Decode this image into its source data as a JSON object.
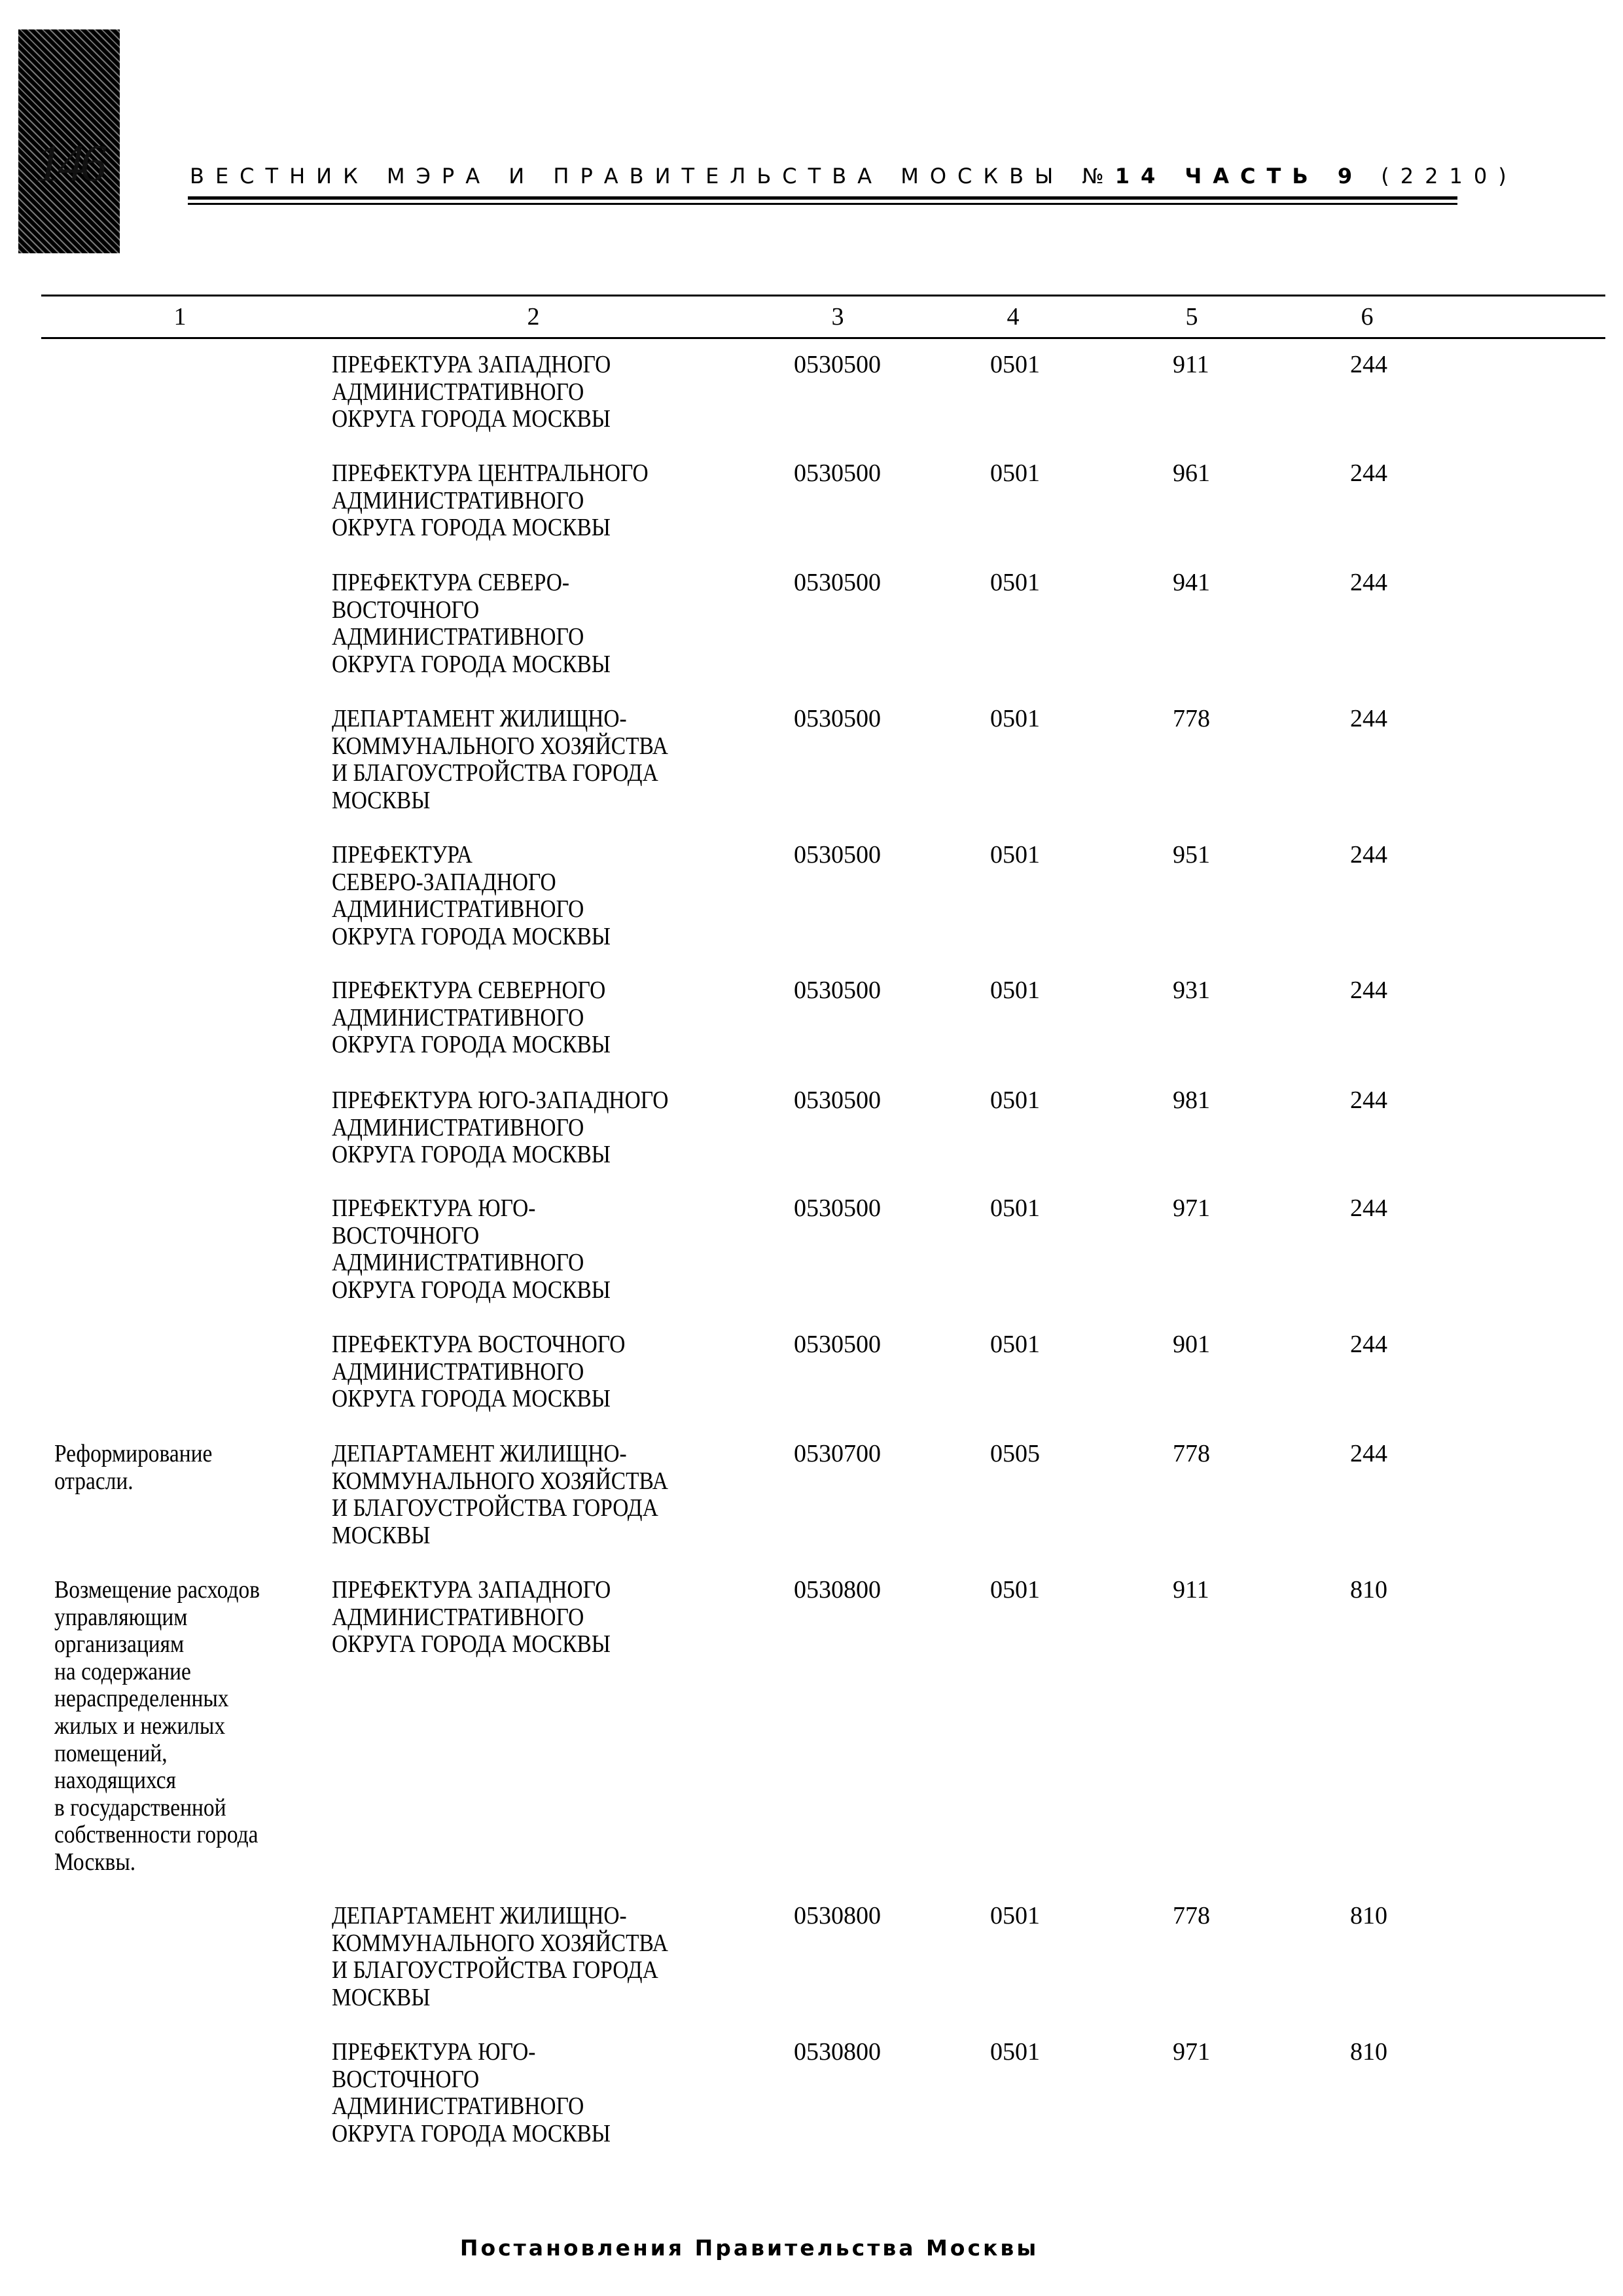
{
  "header": {
    "page_number": "146",
    "journal_title": "ВЕСТНИК МЭРА И ПРАВИТЕЛЬСТВА МОСКВЫ №",
    "issue": "14 ЧАСТЬ 9",
    "issue_total": "(2210)"
  },
  "table": {
    "columns": [
      "1",
      "2",
      "3",
      "4",
      "5",
      "6"
    ],
    "rows": [
      {
        "c1": "",
        "c2": "ПРЕФЕКТУРА ЗАПАДНОГО\nАДМИНИСТРАТИВНОГО\nОКРУГА ГОРОДА МОСКВЫ",
        "c3": "0530500",
        "c4": "0501",
        "c5": "911",
        "c6": "244"
      },
      {
        "c1": "",
        "c2": "ПРЕФЕКТУРА ЦЕНТРАЛЬНОГО\nАДМИНИСТРАТИВНОГО\nОКРУГА ГОРОДА МОСКВЫ",
        "c3": "0530500",
        "c4": "0501",
        "c5": "961",
        "c6": "244"
      },
      {
        "c1": "",
        "c2": "ПРЕФЕКТУРА СЕВЕРО-\nВОСТОЧНОГО\nАДМИНИСТРАТИВНОГО\nОКРУГА ГОРОДА МОСКВЫ",
        "c3": "0530500",
        "c4": "0501",
        "c5": "941",
        "c6": "244"
      },
      {
        "c1": "",
        "c2": "ДЕПАРТАМЕНТ ЖИЛИЩНО-\nКОММУНАЛЬНОГО ХОЗЯЙСТВА\nИ БЛАГОУСТРОЙСТВА ГОРОДА\nМОСКВЫ",
        "c3": "0530500",
        "c4": "0501",
        "c5": "778",
        "c6": "244"
      },
      {
        "c1": "",
        "c2": "ПРЕФЕКТУРА\nСЕВЕРО-ЗАПАДНОГО\nАДМИНИСТРАТИВНОГО\nОКРУГА ГОРОДА МОСКВЫ",
        "c3": "0530500",
        "c4": "0501",
        "c5": "951",
        "c6": "244"
      },
      {
        "c1": "",
        "c2": "ПРЕФЕКТУРА СЕВЕРНОГО\nАДМИНИСТРАТИВНОГО\nОКРУГА ГОРОДА МОСКВЫ",
        "c3": "0530500",
        "c4": "0501",
        "c5": "931",
        "c6": "244"
      },
      {
        "c1": "",
        "c2": "ПРЕФЕКТУРА ЮГО-ЗАПАДНОГО\nАДМИНИСТРАТИВНОГО\nОКРУГА ГОРОДА МОСКВЫ",
        "c3": "0530500",
        "c4": "0501",
        "c5": "981",
        "c6": "244"
      },
      {
        "c1": "",
        "c2": "ПРЕФЕКТУРА ЮГО-\nВОСТОЧНОГО\nАДМИНИСТРАТИВНОГО\nОКРУГА ГОРОДА МОСКВЫ",
        "c3": "0530500",
        "c4": "0501",
        "c5": "971",
        "c6": "244"
      },
      {
        "c1": "",
        "c2": "ПРЕФЕКТУРА ВОСТОЧНОГО\nАДМИНИСТРАТИВНОГО\nОКРУГА ГОРОДА МОСКВЫ",
        "c3": "0530500",
        "c4": "0501",
        "c5": "901",
        "c6": "244"
      },
      {
        "c1": "Реформирование\nотрасли.",
        "c2": "ДЕПАРТАМЕНТ ЖИЛИЩНО-\nКОММУНАЛЬНОГО ХОЗЯЙСТВА\nИ БЛАГОУСТРОЙСТВА ГОРОДА\nМОСКВЫ",
        "c3": "0530700",
        "c4": "0505",
        "c5": "778",
        "c6": "244"
      },
      {
        "c1": "Возмещение расходов\nуправляющим\nорганизациям\nна содержание\nнераспределенных\nжилых и нежилых\nпомещений,\nнаходящихся\nв государственной\nсобственности города\nМосквы.",
        "c2": "ПРЕФЕКТУРА ЗАПАДНОГО\nАДМИНИСТРАТИВНОГО\nОКРУГА ГОРОДА МОСКВЫ",
        "c3": "0530800",
        "c4": "0501",
        "c5": "911",
        "c6": "810"
      },
      {
        "c1": "",
        "c2": "ДЕПАРТАМЕНТ ЖИЛИЩНО-\nКОММУНАЛЬНОГО ХОЗЯЙСТВА\nИ БЛАГОУСТРОЙСТВА ГОРОДА\nМОСКВЫ",
        "c3": "0530800",
        "c4": "0501",
        "c5": "778",
        "c6": "810"
      },
      {
        "c1": "",
        "c2": "ПРЕФЕКТУРА ЮГО-\nВОСТОЧНОГО\nАДМИНИСТРАТИВНОГО\nОКРУГА ГОРОДА МОСКВЫ",
        "c3": "0530800",
        "c4": "0501",
        "c5": "971",
        "c6": "810"
      }
    ]
  },
  "footer": {
    "section": "Постановления Правительства Москвы"
  }
}
